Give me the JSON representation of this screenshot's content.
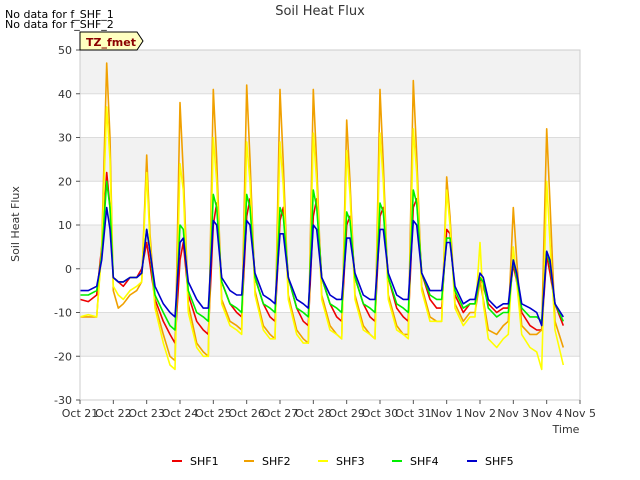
{
  "notes": [
    "No data for f_SHF_1",
    "No data for f_SHF_2"
  ],
  "badge": "TZ_fmet",
  "chart_data": {
    "type": "line",
    "title": "Soil Heat Flux",
    "xlabel": "Time",
    "ylabel": "Soil Heat Flux",
    "xlim": [
      0,
      15
    ],
    "ylim": [
      -30,
      50
    ],
    "x_ticks": [
      {
        "pos": 0,
        "label": "Oct 21"
      },
      {
        "pos": 1,
        "label": "Oct 22"
      },
      {
        "pos": 2,
        "label": "Oct 23"
      },
      {
        "pos": 3,
        "label": "Oct 24"
      },
      {
        "pos": 4,
        "label": "Oct 25"
      },
      {
        "pos": 5,
        "label": "Oct 26"
      },
      {
        "pos": 6,
        "label": "Oct 27"
      },
      {
        "pos": 7,
        "label": "Oct 28"
      },
      {
        "pos": 8,
        "label": "Oct 29"
      },
      {
        "pos": 9,
        "label": "Oct 30"
      },
      {
        "pos": 10,
        "label": "Oct 31"
      },
      {
        "pos": 11,
        "label": "Nov 1"
      },
      {
        "pos": 12,
        "label": "Nov 2"
      },
      {
        "pos": 13,
        "label": "Nov 3"
      },
      {
        "pos": 14,
        "label": "Nov 4"
      },
      {
        "pos": 15,
        "label": "Nov 5"
      }
    ],
    "y_ticks": [
      -30,
      -20,
      -10,
      0,
      10,
      20,
      30,
      40,
      50
    ],
    "grid": true,
    "legend_position": "bottom",
    "series": [
      {
        "name": "SHF1",
        "color": "#ee0000",
        "x": [
          0.0,
          0.25,
          0.5,
          0.65,
          0.8,
          0.9,
          1.0,
          1.15,
          1.3,
          1.5,
          1.7,
          1.85,
          2.0,
          2.1,
          2.25,
          2.5,
          2.7,
          2.85,
          3.0,
          3.1,
          3.25,
          3.5,
          3.7,
          3.85,
          4.0,
          4.1,
          4.25,
          4.5,
          4.7,
          4.85,
          5.0,
          5.1,
          5.25,
          5.5,
          5.7,
          5.85,
          6.0,
          6.1,
          6.25,
          6.5,
          6.7,
          6.85,
          7.0,
          7.1,
          7.25,
          7.5,
          7.7,
          7.85,
          8.0,
          8.1,
          8.25,
          8.5,
          8.7,
          8.85,
          9.0,
          9.1,
          9.25,
          9.5,
          9.7,
          9.85,
          10.0,
          10.1,
          10.25,
          10.5,
          10.7,
          10.85,
          11.0,
          11.1,
          11.25,
          11.5,
          11.7,
          11.85,
          12.0,
          12.1,
          12.25,
          12.5,
          12.7,
          12.85,
          13.0,
          13.1,
          13.25,
          13.5,
          13.7,
          13.85,
          14.0,
          14.1,
          14.25,
          14.5
        ],
        "y": [
          -7,
          -7.5,
          -6,
          5,
          22,
          14,
          -2,
          -3,
          -4,
          -2,
          -2,
          0,
          6,
          1,
          -7,
          -12,
          -15,
          -17,
          2,
          6,
          -6,
          -12,
          -14,
          -15,
          10,
          15,
          -3,
          -8,
          -10,
          -11,
          12,
          16,
          -2,
          -8,
          -11,
          -12,
          11,
          14,
          -2,
          -9,
          -12,
          -13,
          12,
          16,
          -2,
          -8,
          -11,
          -12,
          10,
          12,
          -2,
          -8,
          -11,
          -12,
          12,
          14,
          -2,
          -9,
          -11,
          -12,
          14,
          16,
          -1,
          -7,
          -9,
          -9,
          9,
          8,
          -6,
          -10,
          -8,
          -8,
          -2,
          -4,
          -8,
          -10,
          -9,
          -9,
          1,
          -3,
          -10,
          -13,
          -14,
          -14,
          3,
          -1,
          -8,
          -13
        ]
      },
      {
        "name": "SHF2",
        "color": "#f0a000",
        "x": [
          0.0,
          0.25,
          0.5,
          0.65,
          0.8,
          0.9,
          1.0,
          1.15,
          1.3,
          1.5,
          1.7,
          1.85,
          2.0,
          2.1,
          2.25,
          2.5,
          2.7,
          2.85,
          3.0,
          3.1,
          3.25,
          3.5,
          3.7,
          3.85,
          4.0,
          4.1,
          4.25,
          4.5,
          4.7,
          4.85,
          5.0,
          5.1,
          5.25,
          5.5,
          5.7,
          5.85,
          6.0,
          6.1,
          6.25,
          6.5,
          6.7,
          6.85,
          7.0,
          7.1,
          7.25,
          7.5,
          7.7,
          7.85,
          8.0,
          8.1,
          8.25,
          8.5,
          8.7,
          8.85,
          9.0,
          9.1,
          9.25,
          9.5,
          9.7,
          9.85,
          10.0,
          10.1,
          10.25,
          10.5,
          10.7,
          10.85,
          11.0,
          11.1,
          11.25,
          11.5,
          11.7,
          11.85,
          12.0,
          12.1,
          12.25,
          12.5,
          12.7,
          12.85,
          13.0,
          13.1,
          13.25,
          13.5,
          13.7,
          13.85,
          14.0,
          14.1,
          14.25,
          14.5
        ],
        "y": [
          -11,
          -11,
          -11,
          5,
          47,
          30,
          -5,
          -9,
          -8,
          -6,
          -5,
          -3,
          26,
          8,
          -8,
          -15,
          -20,
          -21,
          38,
          22,
          -8,
          -17,
          -19,
          -20,
          41,
          25,
          -7,
          -12,
          -13,
          -14,
          42,
          25,
          -5,
          -13,
          -15,
          -16,
          41,
          24,
          -6,
          -14,
          -16,
          -17,
          41,
          24,
          -6,
          -13,
          -15,
          -16,
          34,
          20,
          -6,
          -13,
          -15,
          -16,
          41,
          24,
          -6,
          -13,
          -15,
          -15,
          43,
          26,
          -4,
          -11,
          -12,
          -12,
          21,
          12,
          -8,
          -12,
          -10,
          -10,
          -3,
          -7,
          -14,
          -15,
          -13,
          -12,
          14,
          2,
          -13,
          -15,
          -15,
          -14,
          32,
          15,
          -12,
          -18
        ]
      },
      {
        "name": "SHF3",
        "color": "#ffff00",
        "x": [
          0.0,
          0.25,
          0.5,
          0.65,
          0.8,
          0.9,
          1.0,
          1.15,
          1.3,
          1.5,
          1.7,
          1.85,
          2.0,
          2.1,
          2.25,
          2.5,
          2.7,
          2.85,
          3.0,
          3.1,
          3.25,
          3.5,
          3.7,
          3.85,
          4.0,
          4.1,
          4.25,
          4.5,
          4.7,
          4.85,
          5.0,
          5.1,
          5.25,
          5.5,
          5.7,
          5.85,
          6.0,
          6.1,
          6.25,
          6.5,
          6.7,
          6.85,
          7.0,
          7.1,
          7.25,
          7.5,
          7.7,
          7.85,
          8.0,
          8.1,
          8.25,
          8.5,
          8.7,
          8.85,
          9.0,
          9.1,
          9.25,
          9.5,
          9.7,
          9.85,
          10.0,
          10.1,
          10.25,
          10.5,
          10.7,
          10.85,
          11.0,
          11.1,
          11.25,
          11.5,
          11.7,
          11.85,
          12.0,
          12.1,
          12.25,
          12.5,
          12.7,
          12.85,
          13.0,
          13.1,
          13.25,
          13.5,
          13.7,
          13.85,
          14.0,
          14.1,
          14.25,
          14.5
        ],
        "y": [
          -11,
          -10.5,
          -11,
          4,
          37,
          25,
          -4,
          -6,
          -7,
          -5,
          -4,
          -3,
          22,
          6,
          -9,
          -17,
          -22,
          -23,
          24,
          18,
          -10,
          -18,
          -20,
          -20,
          30,
          20,
          -8,
          -13,
          -14,
          -15,
          29,
          20,
          -6,
          -14,
          -16,
          -16,
          29,
          19,
          -7,
          -15,
          -17,
          -17,
          31,
          20,
          -7,
          -14,
          -15,
          -16,
          27,
          17,
          -7,
          -14,
          -15,
          -16,
          31,
          20,
          -7,
          -14,
          -15,
          -16,
          32,
          22,
          -5,
          -12,
          -12,
          -12,
          18,
          10,
          -9,
          -13,
          -11,
          -11,
          6,
          -8,
          -16,
          -18,
          -16,
          -15,
          5,
          -3,
          -15,
          -18,
          -19,
          -23,
          20,
          6,
          -14,
          -22
        ]
      },
      {
        "name": "SHF4",
        "color": "#00ee00",
        "x": [
          0.0,
          0.25,
          0.5,
          0.65,
          0.8,
          0.9,
          1.0,
          1.15,
          1.3,
          1.5,
          1.7,
          1.85,
          2.0,
          2.1,
          2.25,
          2.5,
          2.7,
          2.85,
          3.0,
          3.1,
          3.25,
          3.5,
          3.7,
          3.85,
          4.0,
          4.1,
          4.25,
          4.5,
          4.7,
          4.85,
          5.0,
          5.1,
          5.25,
          5.5,
          5.7,
          5.85,
          6.0,
          6.1,
          6.25,
          6.5,
          6.7,
          6.85,
          7.0,
          7.1,
          7.25,
          7.5,
          7.7,
          7.85,
          8.0,
          8.1,
          8.25,
          8.5,
          8.7,
          8.85,
          9.0,
          9.1,
          9.25,
          9.5,
          9.7,
          9.85,
          10.0,
          10.1,
          10.25,
          10.5,
          10.7,
          10.85,
          11.0,
          11.1,
          11.25,
          11.5,
          11.7,
          11.85,
          12.0,
          12.1,
          12.25,
          12.5,
          12.7,
          12.85,
          13.0,
          13.1,
          13.25,
          13.5,
          13.7,
          13.85,
          14.0,
          14.1,
          14.25,
          14.5
        ],
        "y": [
          -6,
          -6,
          -5,
          3,
          20,
          14,
          -2,
          -3,
          -3,
          -2,
          -2,
          -1,
          9,
          4,
          -6,
          -10,
          -13,
          -14,
          10,
          9,
          -5,
          -10,
          -11,
          -12,
          17,
          14,
          -3,
          -8,
          -9,
          -10,
          17,
          14,
          -2,
          -8,
          -9,
          -10,
          14,
          12,
          -2,
          -9,
          -10,
          -11,
          18,
          14,
          -2,
          -8,
          -9,
          -10,
          13,
          11,
          -2,
          -8,
          -9,
          -10,
          15,
          13,
          -2,
          -8,
          -9,
          -10,
          18,
          15,
          -1,
          -6,
          -7,
          -7,
          7,
          7,
          -5,
          -9,
          -8,
          -8,
          -2,
          -3,
          -9,
          -11,
          -10,
          -10,
          2,
          -2,
          -9,
          -11,
          -11,
          -12,
          4,
          1,
          -8,
          -12
        ]
      },
      {
        "name": "SHF5",
        "color": "#0000cc",
        "x": [
          0.0,
          0.25,
          0.5,
          0.65,
          0.8,
          0.9,
          1.0,
          1.15,
          1.3,
          1.5,
          1.7,
          1.85,
          2.0,
          2.1,
          2.25,
          2.5,
          2.7,
          2.85,
          3.0,
          3.1,
          3.25,
          3.5,
          3.7,
          3.85,
          4.0,
          4.1,
          4.25,
          4.5,
          4.7,
          4.85,
          5.0,
          5.1,
          5.25,
          5.5,
          5.7,
          5.85,
          6.0,
          6.1,
          6.25,
          6.5,
          6.7,
          6.85,
          7.0,
          7.1,
          7.25,
          7.5,
          7.7,
          7.85,
          8.0,
          8.1,
          8.25,
          8.5,
          8.7,
          8.85,
          9.0,
          9.1,
          9.25,
          9.5,
          9.7,
          9.85,
          10.0,
          10.1,
          10.25,
          10.5,
          10.7,
          10.85,
          11.0,
          11.1,
          11.25,
          11.5,
          11.7,
          11.85,
          12.0,
          12.1,
          12.25,
          12.5,
          12.7,
          12.85,
          13.0,
          13.1,
          13.25,
          13.5,
          13.7,
          13.85,
          14.0,
          14.1,
          14.25,
          14.5
        ],
        "y": [
          -5,
          -5,
          -4,
          2,
          14,
          9,
          -2,
          -3,
          -3,
          -2,
          -2,
          -1,
          9,
          4,
          -4,
          -8,
          -10,
          -11,
          6,
          7,
          -3,
          -7,
          -9,
          -9,
          11,
          10,
          -2,
          -5,
          -6,
          -6,
          11,
          10,
          -1,
          -6,
          -7,
          -8,
          8,
          8,
          -2,
          -7,
          -8,
          -9,
          10,
          9,
          -2,
          -6,
          -7,
          -7,
          7,
          7,
          -1,
          -6,
          -7,
          -7,
          9,
          9,
          -1,
          -6,
          -7,
          -7,
          11,
          10,
          -1,
          -5,
          -5,
          -5,
          6,
          6,
          -4,
          -8,
          -7,
          -7,
          -1,
          -2,
          -7,
          -9,
          -8,
          -8,
          2,
          -1,
          -8,
          -9,
          -10,
          -13,
          4,
          2,
          -8,
          -11
        ]
      }
    ]
  }
}
